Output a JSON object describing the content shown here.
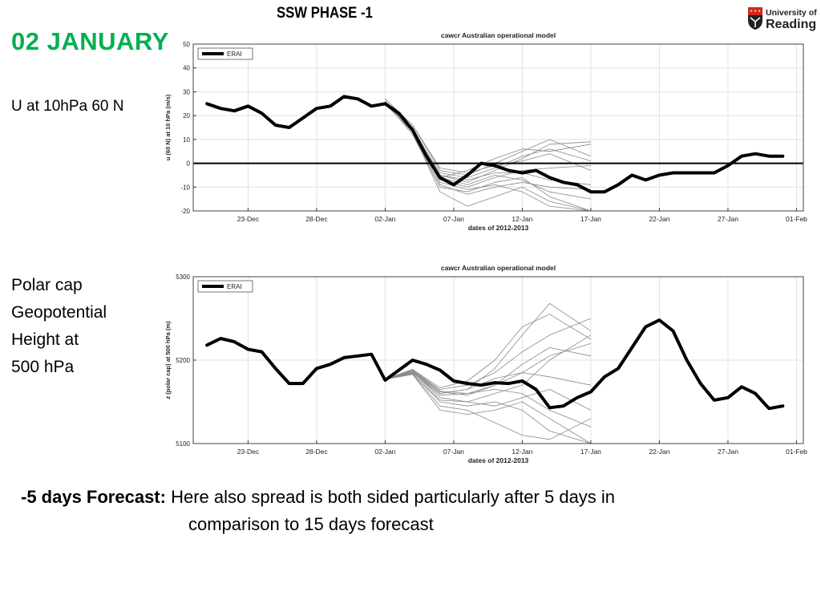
{
  "slide": {
    "title": "SSW PHASE -1",
    "date_title": "02  JANUARY",
    "u_label": "U at 10hPa 60 N",
    "z_label_lines": [
      "Polar cap",
      "Geopotential",
      "Height at",
      "500 hPa"
    ],
    "bottom_bold": "-5 days Forecast:",
    "bottom_text_1": " Here also spread is both sided particularly after 5 days in",
    "bottom_text_2": "comparison to 15 days forecast",
    "title_color": "#00b050"
  },
  "logo": {
    "text_1": "University of",
    "text_2": "Reading",
    "shield_color": "#d2232a"
  },
  "chart_data": [
    {
      "type": "line",
      "title": "cawcr Australian operational model",
      "xlabel": "dates of 2012-2013",
      "ylabel": "u (60 N) at 10 hPa (m/s)",
      "xlim": [
        "2012-12-19",
        "2013-02-01T12:00"
      ],
      "ylim": [
        -20,
        50
      ],
      "yticks": [
        -20,
        -10,
        0,
        10,
        20,
        30,
        40,
        50
      ],
      "xticks": [
        "2012-12-23",
        "2012-12-28",
        "2013-01-02",
        "2013-01-07",
        "2013-01-12",
        "2013-01-17",
        "2013-01-22",
        "2013-01-27",
        "2013-02-01"
      ],
      "xtick_labels": [
        "23-Dec",
        "28-Dec",
        "02-Jan",
        "07-Jan",
        "12-Jan",
        "17-Jan",
        "22-Jan",
        "27-Jan",
        "01-Feb"
      ],
      "grid": true,
      "zero_line": true,
      "legend": {
        "placement": "top-left",
        "entries": [
          "ERAI"
        ]
      },
      "series": [
        {
          "name": "ERAI",
          "color": "#000000",
          "x": [
            "2012-12-20",
            "2012-12-21",
            "2012-12-22",
            "2012-12-23",
            "2012-12-24",
            "2012-12-25",
            "2012-12-26",
            "2012-12-27",
            "2012-12-28",
            "2012-12-29",
            "2012-12-30",
            "2012-12-31",
            "2013-01-01",
            "2013-01-02",
            "2013-01-03",
            "2013-01-04",
            "2013-01-05",
            "2013-01-06",
            "2013-01-07",
            "2013-01-08",
            "2013-01-09",
            "2013-01-10",
            "2013-01-11",
            "2013-01-12",
            "2013-01-13",
            "2013-01-14",
            "2013-01-15",
            "2013-01-16",
            "2013-01-17",
            "2013-01-18",
            "2013-01-19",
            "2013-01-20",
            "2013-01-21",
            "2013-01-22",
            "2013-01-23",
            "2013-01-24",
            "2013-01-25",
            "2013-01-26",
            "2013-01-27",
            "2013-01-28",
            "2013-01-29",
            "2013-01-30",
            "2013-01-31"
          ],
          "values": [
            25,
            23,
            22,
            24,
            21,
            16,
            15,
            19,
            23,
            24,
            28,
            27,
            24,
            25,
            21,
            14,
            3,
            -6,
            -9,
            -5,
            0,
            -1,
            -3,
            -4,
            -3,
            -6,
            -8,
            -9,
            -12,
            -12,
            -9,
            -5,
            -7,
            -5,
            -4,
            -4,
            -4,
            -4,
            -1,
            3,
            4,
            3,
            3
          ]
        }
      ],
      "ensemble": {
        "color": "#888888",
        "x": [
          "2013-01-02",
          "2013-01-04",
          "2013-01-06",
          "2013-01-08",
          "2013-01-10",
          "2013-01-12",
          "2013-01-14",
          "2013-01-17"
        ],
        "members": [
          [
            26,
            15,
            -5,
            -8,
            -3,
            2,
            8,
            9
          ],
          [
            26,
            14,
            -6,
            -9,
            -5,
            -7,
            -12,
            -15
          ],
          [
            27,
            16,
            -3,
            -5,
            0,
            5,
            10,
            3
          ],
          [
            26,
            12,
            -10,
            -12,
            -8,
            -6,
            -14,
            -20
          ],
          [
            26,
            15,
            -7,
            -10,
            -6,
            -3,
            -2,
            -1
          ],
          [
            25,
            13,
            -12,
            -18,
            -14,
            -10,
            -16,
            -20
          ],
          [
            26,
            14,
            -4,
            -6,
            -2,
            3,
            6,
            1
          ],
          [
            26,
            15,
            -8,
            -11,
            -9,
            -12,
            -18,
            -20
          ],
          [
            27,
            16,
            -2,
            -4,
            -1,
            1,
            4,
            -3
          ],
          [
            26,
            13,
            -9,
            -13,
            -10,
            -8,
            -10,
            -11
          ],
          [
            26,
            14,
            -5,
            -7,
            -4,
            -4,
            -7,
            -9
          ],
          [
            26,
            15,
            -6,
            -3,
            2,
            6,
            5,
            8
          ]
        ]
      }
    },
    {
      "type": "line",
      "title": "cawcr Australian operational model",
      "xlabel": "dates of 2012-2013",
      "ylabel": "z (polar cap) at 500 hPa (m)",
      "xlim": [
        "2012-12-19",
        "2013-02-01T12:00"
      ],
      "ylim": [
        5100,
        5300
      ],
      "yticks": [
        5100,
        5200,
        5300
      ],
      "xticks": [
        "2012-12-23",
        "2012-12-28",
        "2013-01-02",
        "2013-01-07",
        "2013-01-12",
        "2013-01-17",
        "2013-01-22",
        "2013-01-27",
        "2013-02-01"
      ],
      "xtick_labels": [
        "23-Dec",
        "28-Dec",
        "02-Jan",
        "07-Jan",
        "12-Jan",
        "17-Jan",
        "22-Jan",
        "27-Jan",
        "01-Feb"
      ],
      "grid": true,
      "zero_line": false,
      "legend": {
        "placement": "top-left",
        "entries": [
          "ERAI"
        ]
      },
      "series": [
        {
          "name": "ERAI",
          "color": "#000000",
          "x": [
            "2012-12-20",
            "2012-12-21",
            "2012-12-22",
            "2012-12-23",
            "2012-12-24",
            "2012-12-25",
            "2012-12-26",
            "2012-12-27",
            "2012-12-28",
            "2012-12-29",
            "2012-12-30",
            "2012-12-31",
            "2013-01-01",
            "2013-01-02",
            "2013-01-03",
            "2013-01-04",
            "2013-01-05",
            "2013-01-06",
            "2013-01-07",
            "2013-01-08",
            "2013-01-09",
            "2013-01-10",
            "2013-01-11",
            "2013-01-12",
            "2013-01-13",
            "2013-01-14",
            "2013-01-15",
            "2013-01-16",
            "2013-01-17",
            "2013-01-18",
            "2013-01-19",
            "2013-01-20",
            "2013-01-21",
            "2013-01-22",
            "2013-01-23",
            "2013-01-24",
            "2013-01-25",
            "2013-01-26",
            "2013-01-27",
            "2013-01-28",
            "2013-01-29",
            "2013-01-30",
            "2013-01-31"
          ],
          "values": [
            5218,
            5226,
            5222,
            5213,
            5210,
            5190,
            5172,
            5172,
            5190,
            5195,
            5203,
            5205,
            5207,
            5176,
            5188,
            5200,
            5195,
            5188,
            5175,
            5172,
            5170,
            5173,
            5172,
            5175,
            5165,
            5143,
            5145,
            5155,
            5162,
            5180,
            5190,
            5215,
            5240,
            5248,
            5235,
            5200,
            5172,
            5152,
            5155,
            5168,
            5160,
            5142,
            5145
          ]
        }
      ],
      "ensemble": {
        "color": "#888888",
        "x": [
          "2013-01-02",
          "2013-01-04",
          "2013-01-06",
          "2013-01-08",
          "2013-01-10",
          "2013-01-12",
          "2013-01-14",
          "2013-01-17"
        ],
        "members": [
          [
            5177,
            5185,
            5160,
            5165,
            5190,
            5230,
            5268,
            5235
          ],
          [
            5177,
            5183,
            5140,
            5135,
            5140,
            5150,
            5130,
            5100
          ],
          [
            5177,
            5188,
            5165,
            5170,
            5185,
            5210,
            5230,
            5250
          ],
          [
            5177,
            5186,
            5155,
            5150,
            5160,
            5170,
            5200,
            5230
          ],
          [
            5177,
            5184,
            5150,
            5145,
            5150,
            5140,
            5115,
            5100
          ],
          [
            5177,
            5187,
            5162,
            5158,
            5170,
            5195,
            5215,
            5205
          ],
          [
            5177,
            5185,
            5158,
            5160,
            5165,
            5160,
            5140,
            5120
          ],
          [
            5177,
            5189,
            5167,
            5175,
            5200,
            5240,
            5255,
            5225
          ],
          [
            5177,
            5183,
            5145,
            5140,
            5125,
            5110,
            5105,
            5130
          ],
          [
            5177,
            5186,
            5160,
            5165,
            5178,
            5185,
            5180,
            5170
          ],
          [
            5177,
            5188,
            5163,
            5160,
            5170,
            5185,
            5205,
            5220
          ],
          [
            5177,
            5184,
            5152,
            5150,
            5145,
            5155,
            5165,
            5140
          ]
        ]
      }
    }
  ]
}
